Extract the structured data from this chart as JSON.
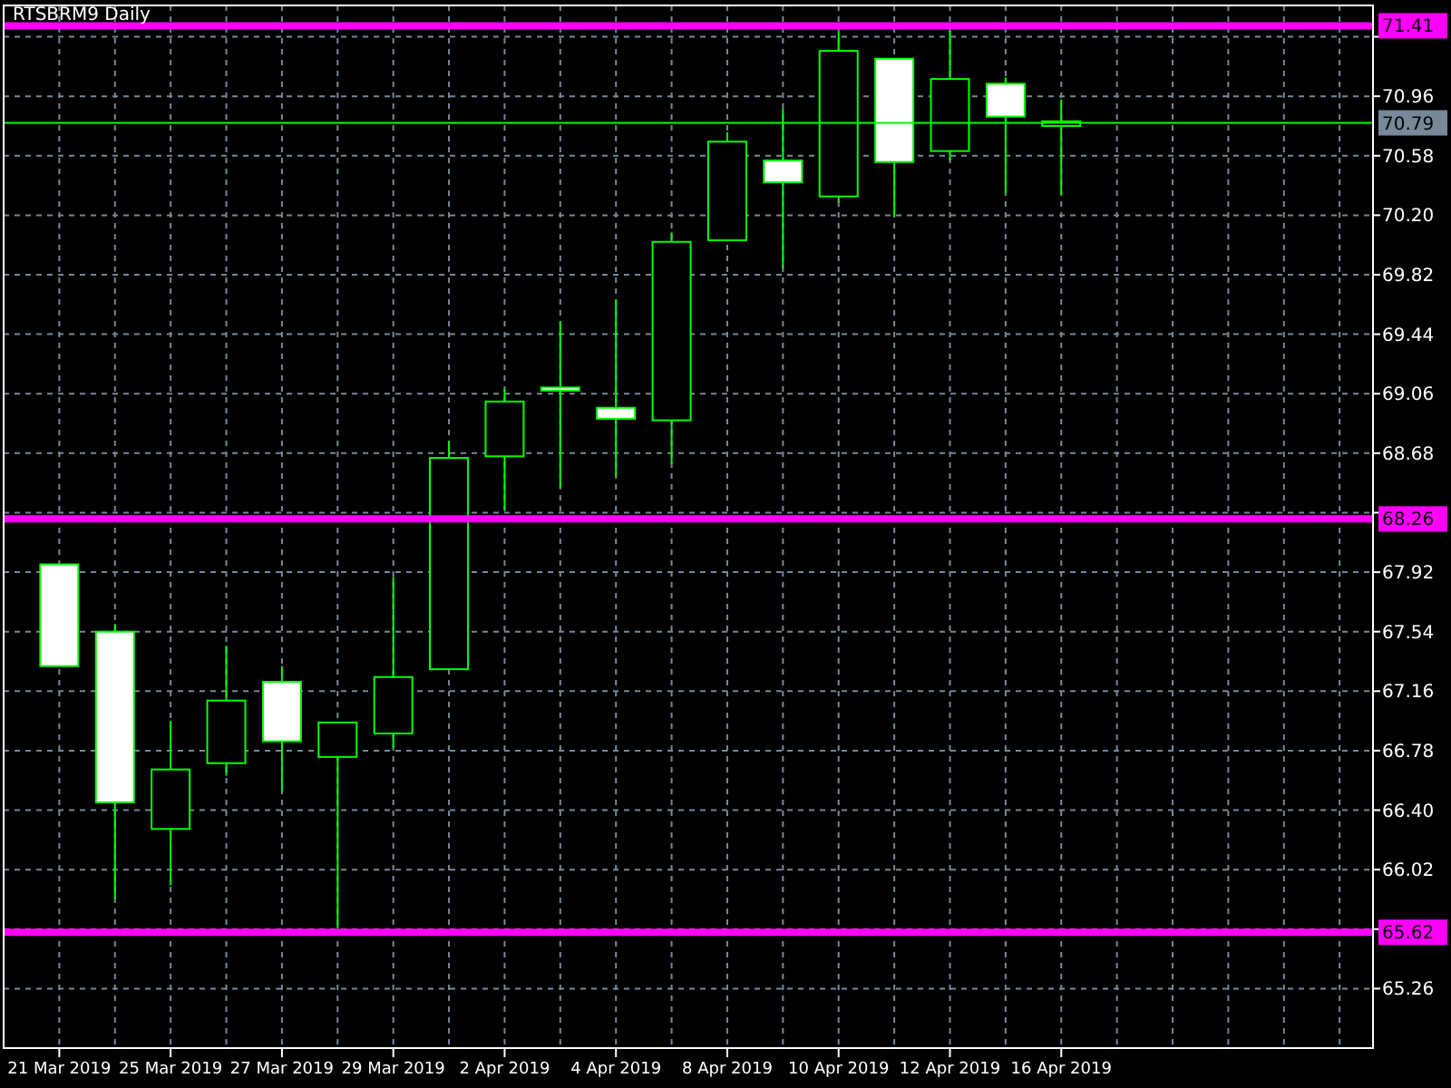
{
  "chart_data": {
    "type": "candlestick",
    "title": "RTSBRM9 Daily",
    "categories": [
      "21 Mar 2019",
      null,
      "25 Mar 2019",
      null,
      "27 Mar 2019",
      null,
      "29 Mar 2019",
      null,
      "2 Apr 2019",
      null,
      "4 Apr 2019",
      null,
      "8 Apr 2019",
      null,
      "10 Apr 2019",
      null,
      "12 Apr 2019",
      null,
      "16 Apr 2019",
      null,
      null,
      null,
      null,
      null
    ],
    "color": "#00ff00",
    "ohlc": [
      [
        67.97,
        67.97,
        67.32,
        67.32
      ],
      [
        67.54,
        67.59,
        65.83,
        66.45
      ],
      [
        66.28,
        66.97,
        65.92,
        66.66
      ],
      [
        66.7,
        67.45,
        66.62,
        67.1
      ],
      [
        67.22,
        67.32,
        66.52,
        66.84
      ],
      [
        66.74,
        66.96,
        65.64,
        66.96
      ],
      [
        66.89,
        67.89,
        66.8,
        67.25
      ],
      [
        67.3,
        68.76,
        67.3,
        68.65
      ],
      [
        68.66,
        69.09,
        68.32,
        69.01
      ],
      [
        69.1,
        69.52,
        68.46,
        69.08
      ],
      [
        68.97,
        69.66,
        68.53,
        68.9
      ],
      [
        68.89,
        70.09,
        68.61,
        70.03
      ],
      [
        70.04,
        70.73,
        70.04,
        70.67
      ],
      [
        70.55,
        70.88,
        69.86,
        70.41
      ],
      [
        70.32,
        71.37,
        70.28,
        71.25
      ],
      [
        71.2,
        71.2,
        70.19,
        70.54
      ],
      [
        70.61,
        71.38,
        70.55,
        71.07
      ],
      [
        71.04,
        71.08,
        70.34,
        70.83
      ],
      [
        70.77,
        70.94,
        70.33,
        70.8
      ],
      null,
      null,
      null,
      null,
      null
    ],
    "colors": [
      "#ffffff",
      "#ffffff",
      "#000000",
      "#000000",
      "#ffffff",
      "#000000",
      "#000000",
      "#000000",
      "#000000",
      "#ffffff",
      "#ffffff",
      "#000000",
      "#000000",
      "#ffffff",
      "#000000",
      "#ffffff",
      "#000000",
      "#ffffff",
      "#000000",
      null,
      null,
      null,
      null,
      null
    ],
    "ylim": [
      64.88,
      71.54
    ],
    "yticks": [
      65.26,
      {
        "value": 65.64,
        "label": null
      },
      66.02,
      {
        "value": 66.4,
        "label": "66.40"
      },
      66.78,
      67.16,
      67.54,
      67.92,
      {
        "value": 68.3,
        "label": null
      },
      68.68,
      69.06,
      69.44,
      69.82,
      {
        "value": 70.2,
        "label": "70.20"
      },
      70.58,
      70.96,
      {
        "value": 71.34,
        "label": null
      }
    ],
    "grid": true,
    "ref_lines": [
      {
        "axis": "y",
        "value": 71.41,
        "label": "71.41",
        "color": "#ff00ff"
      },
      {
        "axis": "y",
        "value": 68.26,
        "label": "68.26",
        "color": "#ff00ff"
      },
      {
        "axis": "y",
        "value": 65.62,
        "label": "65.62",
        "color": "#ff00ff"
      },
      {
        "axis": "y",
        "value": 70.79,
        "label": "70.79",
        "color": "#00ff00"
      }
    ]
  }
}
